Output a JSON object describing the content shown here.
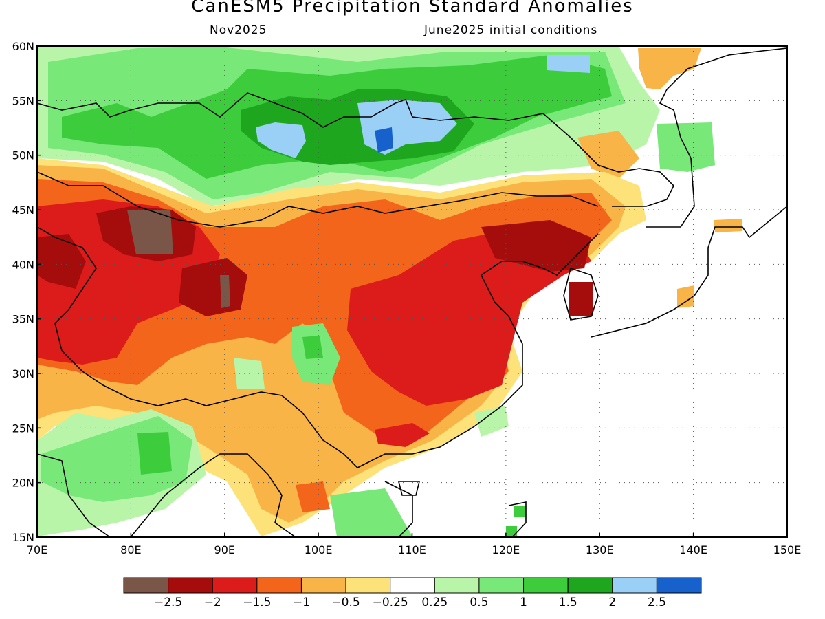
{
  "title": "CanESM5 Precipitation Standard Anomalies",
  "subtitle_left": "Nov2025",
  "subtitle_right": "June2025 initial conditions",
  "map": {
    "lon_ticks": [
      "70E",
      "80E",
      "90E",
      "100E",
      "110E",
      "120E",
      "130E",
      "140E",
      "150E"
    ],
    "lat_ticks": [
      "60N",
      "55N",
      "50N",
      "45N",
      "40N",
      "35N",
      "30N",
      "25N",
      "20N",
      "15N"
    ],
    "lon_range": [
      70,
      150
    ],
    "lat_range": [
      15,
      60
    ],
    "gridlines": true
  },
  "legend": {
    "labels": [
      "−2.5",
      "−2",
      "−1.5",
      "−1",
      "−0.5",
      "−0.25",
      "0.25",
      "0.5",
      "1",
      "1.5",
      "2",
      "2.5"
    ],
    "colors": [
      "#7a5648",
      "#a50c0c",
      "#dc1b1b",
      "#f2651a",
      "#f8b446",
      "#fde27a",
      "#ffffff",
      "#b9f5a8",
      "#78e878",
      "#3ccc3c",
      "#1ea71e",
      "#9ad0f5",
      "#1761cc"
    ]
  },
  "colors": {
    "brown": "#7a5648",
    "dark_red": "#a50c0c",
    "red": "#dc1b1b",
    "orange": "#f2651a",
    "light_orange": "#f8b446",
    "yellow": "#fde27a",
    "white": "#ffffff",
    "pale_green": "#b9f5a8",
    "light_green": "#78e878",
    "green": "#3ccc3c",
    "dark_green": "#1ea71e",
    "light_blue": "#9ad0f5",
    "blue": "#1761cc"
  }
}
